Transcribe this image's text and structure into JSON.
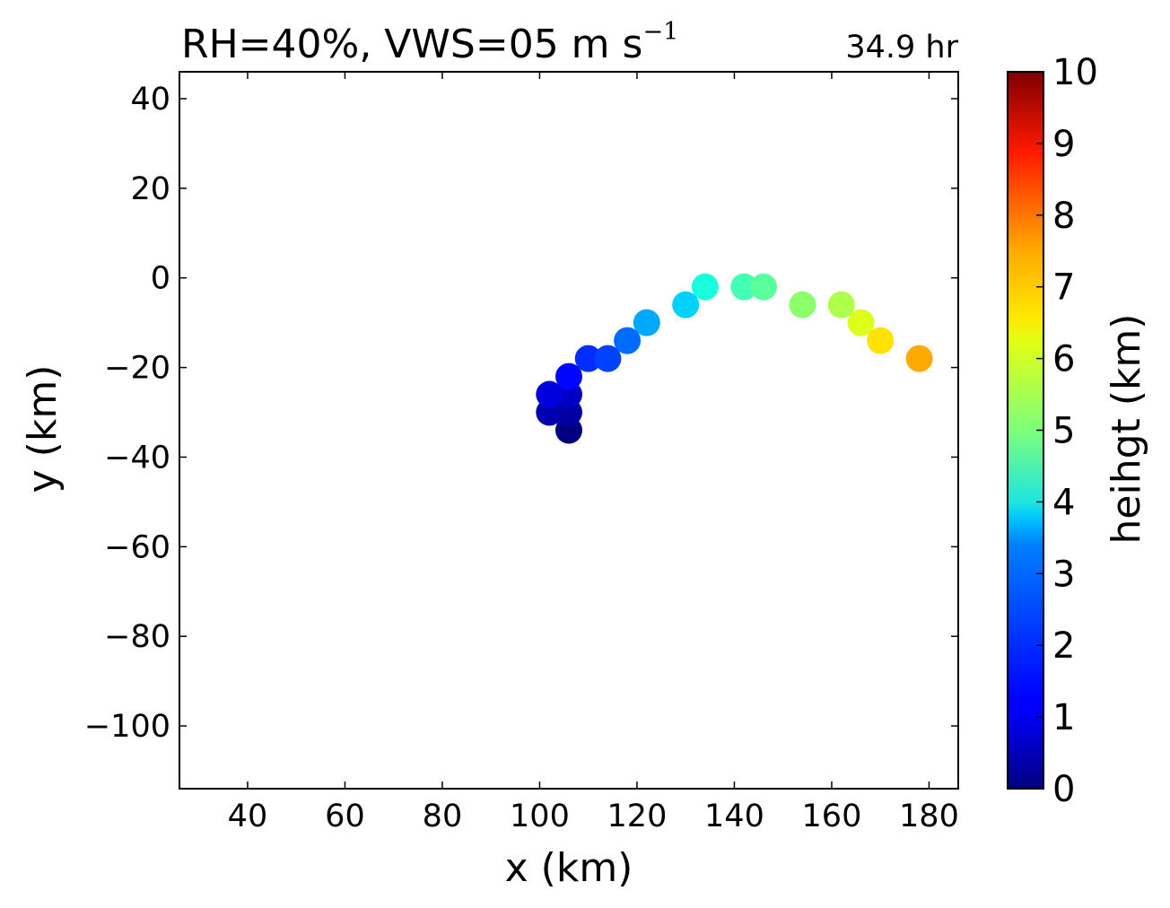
{
  "chart_data": {
    "type": "scatter",
    "title": "RH=40%, VWS=05 m s",
    "title_superscript": "−1",
    "time_label": "34.9 hr",
    "time_label_color": "#0000ff",
    "xlabel": "x (km)",
    "ylabel": "y (km)",
    "xlim": [
      26,
      186
    ],
    "ylim": [
      -114,
      46
    ],
    "xticks": [
      40,
      60,
      80,
      100,
      120,
      140,
      160,
      180
    ],
    "yticks": [
      40,
      20,
      0,
      -20,
      -40,
      -60,
      -80,
      -100
    ],
    "xtick_labels": [
      "40",
      "60",
      "80",
      "100",
      "120",
      "140",
      "160",
      "180"
    ],
    "ytick_labels": [
      "40",
      "20",
      "0",
      "−20",
      "−40",
      "−60",
      "−80",
      "−100"
    ],
    "colormap": "jet",
    "colorbar": {
      "label": "heihgt (km)",
      "range": [
        0,
        10
      ],
      "ticks": [
        0,
        1,
        2,
        3,
        4,
        5,
        6,
        7,
        8,
        9,
        10
      ],
      "tick_labels": [
        "0",
        "1",
        "2",
        "3",
        "4",
        "5",
        "6",
        "7",
        "8",
        "9",
        "10"
      ]
    },
    "points": [
      {
        "x": 106,
        "y": -34,
        "height": 0.0
      },
      {
        "x": 106,
        "y": -30,
        "height": 0.3
      },
      {
        "x": 102,
        "y": -30,
        "height": 0.4
      },
      {
        "x": 106,
        "y": -26,
        "height": 0.6
      },
      {
        "x": 102,
        "y": -26,
        "height": 0.8
      },
      {
        "x": 106,
        "y": -22,
        "height": 1.3
      },
      {
        "x": 110,
        "y": -18,
        "height": 1.7
      },
      {
        "x": 114,
        "y": -18,
        "height": 1.9
      },
      {
        "x": 118,
        "y": -14,
        "height": 2.3
      },
      {
        "x": 122,
        "y": -10,
        "height": 2.9
      },
      {
        "x": 130,
        "y": -6,
        "height": 3.3
      },
      {
        "x": 134,
        "y": -2,
        "height": 3.8
      },
      {
        "x": 142,
        "y": -2,
        "height": 4.3
      },
      {
        "x": 146,
        "y": -2,
        "height": 4.6
      },
      {
        "x": 154,
        "y": -6,
        "height": 5.2
      },
      {
        "x": 162,
        "y": -6,
        "height": 5.6
      },
      {
        "x": 166,
        "y": -10,
        "height": 6.2
      },
      {
        "x": 170,
        "y": -14,
        "height": 6.7
      },
      {
        "x": 178,
        "y": -18,
        "height": 7.3
      }
    ]
  }
}
